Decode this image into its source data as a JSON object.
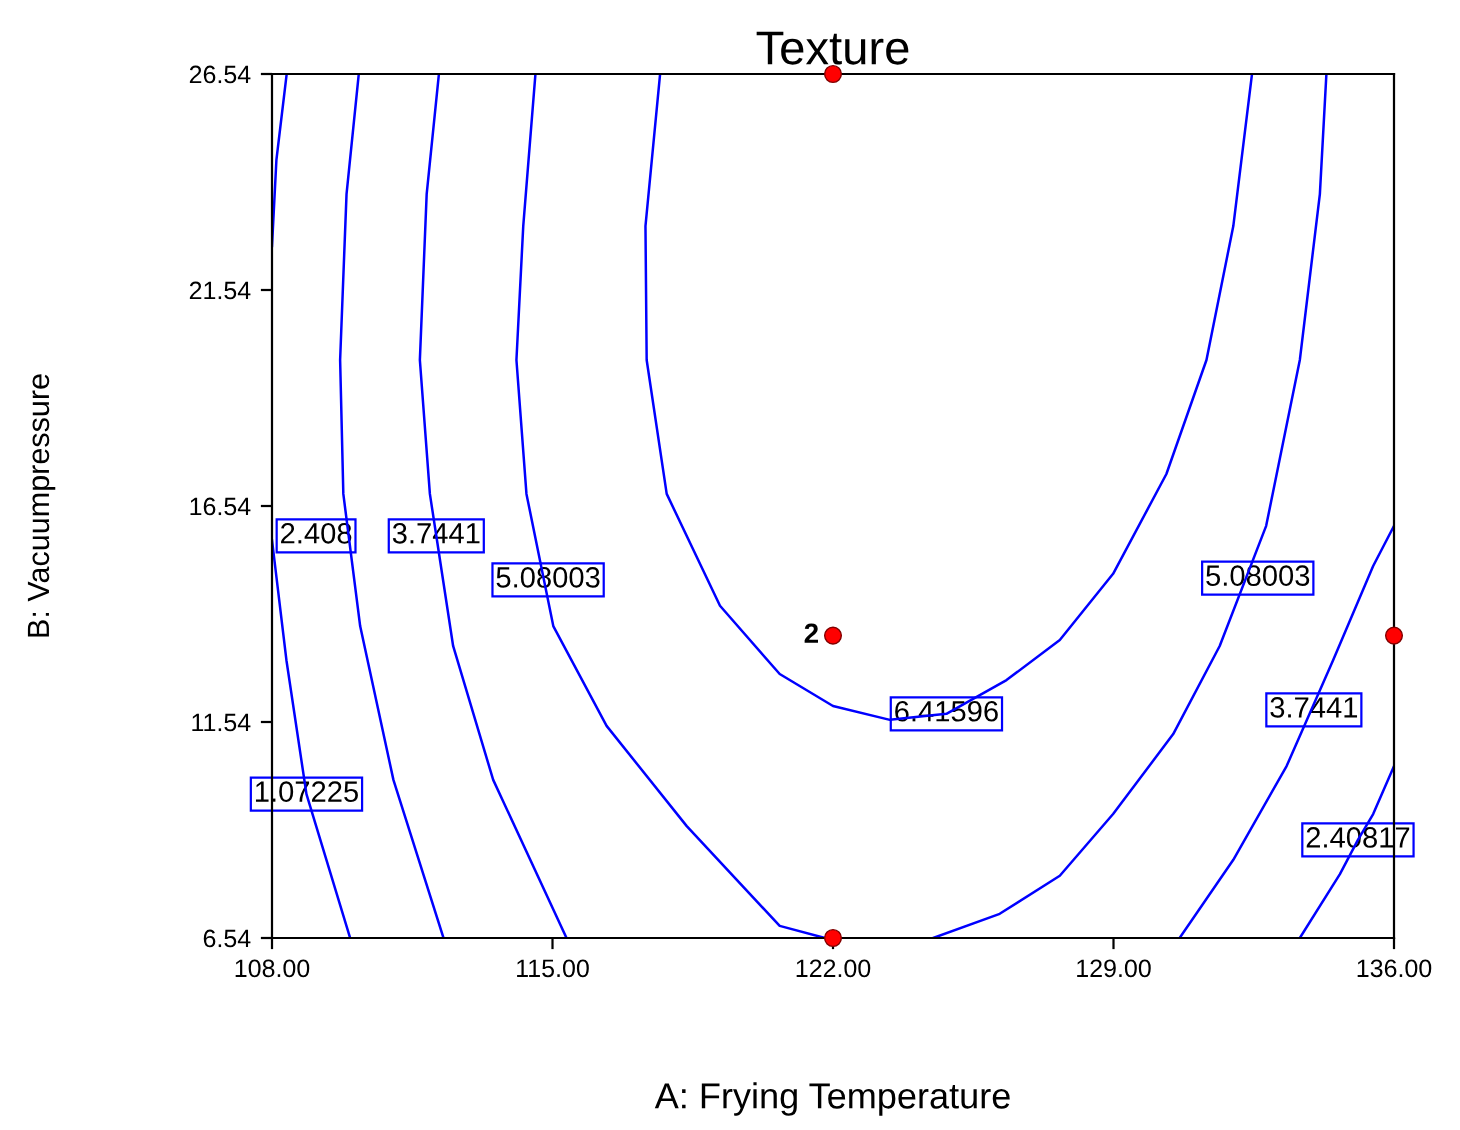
{
  "chart_data": {
    "type": "line",
    "title": "Texture",
    "xlabel": "A: Frying Temperature",
    "ylabel": "B: Vacuumpressure",
    "xlim": [
      108,
      136
    ],
    "ylim": [
      6.54,
      26.54
    ],
    "xticks": [
      {
        "value": 108,
        "label": "108.00"
      },
      {
        "value": 115,
        "label": "115.00"
      },
      {
        "value": 122,
        "label": "122.00"
      },
      {
        "value": 129,
        "label": "129.00"
      },
      {
        "value": 136,
        "label": "136.00"
      }
    ],
    "yticks": [
      6.54,
      11.54,
      16.54,
      21.54,
      26.54
    ],
    "grid": false,
    "line_style": "solid",
    "series": [
      {
        "color": "#0000ff",
        "x": [
          108.36,
          108.11,
          108.0,
          null,
          108.0,
          108.36,
          108.86,
          109.95
        ],
        "values": [
          26.49,
          24.55,
          22.56,
          null,
          15.75,
          12.97,
          9.87,
          6.54
        ]
      },
      {
        "color": "#0000ff",
        "x": [
          110.16,
          109.86,
          109.7,
          109.78,
          110.2,
          111.03,
          112.28,
          null,
          133.65,
          134.65,
          135.1,
          135.48,
          136.0
        ],
        "values": [
          26.49,
          23.76,
          19.92,
          16.82,
          13.76,
          10.2,
          6.54,
          null,
          6.54,
          8.02,
          8.81,
          9.41,
          10.52
        ]
      },
      {
        "color": "#0000ff",
        "x": [
          112.16,
          111.86,
          111.69,
          111.94,
          112.1,
          112.52,
          113.52,
          115.35,
          null,
          130.65,
          131.99,
          133.32,
          134.48,
          135.48,
          136.0
        ],
        "values": [
          26.49,
          23.76,
          19.92,
          16.82,
          15.85,
          13.3,
          10.2,
          6.54,
          null,
          6.54,
          8.35,
          10.52,
          12.97,
          15.15,
          16.08
        ]
      },
      {
        "color": "#0000ff",
        "x": [
          114.57,
          114.27,
          114.1,
          114.35,
          115.02,
          116.35,
          118.35,
          120.67,
          121.8,
          null,
          124.5,
          126.16,
          127.66,
          128.99,
          130.49,
          131.65,
          132.81,
          133.65,
          134.15,
          134.31
        ],
        "values": [
          26.49,
          23.02,
          19.92,
          16.82,
          13.76,
          11.45,
          9.13,
          6.82,
          6.54,
          null,
          6.54,
          7.1,
          7.98,
          9.41,
          11.26,
          13.3,
          16.08,
          19.92,
          23.76,
          26.49
        ]
      },
      {
        "color": "#0000ff",
        "x": [
          117.68,
          117.32,
          117.35,
          117.85,
          119.18,
          120.67,
          122.0,
          123.42,
          124.83,
          126.33,
          127.66,
          128.99,
          130.32,
          131.32,
          131.99,
          132.45
        ],
        "values": [
          26.49,
          23.02,
          19.92,
          16.82,
          14.23,
          12.65,
          11.91,
          11.59,
          11.73,
          12.51,
          13.44,
          14.97,
          17.28,
          19.92,
          23.02,
          26.49
        ]
      },
      {
        "type": "scatter",
        "color": "#ff0000",
        "marker": "circle",
        "x": [
          122,
          122,
          122,
          136
        ],
        "values": [
          26.54,
          13.54,
          6.54,
          13.54
        ]
      }
    ],
    "annotations": [
      {
        "text": "2.408",
        "x": 109.1,
        "y": 15.85
      },
      {
        "text": "3.7441",
        "x": 112.1,
        "y": 15.85
      },
      {
        "text": "5.08003",
        "x": 114.89,
        "y": 14.83
      },
      {
        "text": "1.07225",
        "x": 108.86,
        "y": 9.87
      },
      {
        "text": "6.41596",
        "x": 124.83,
        "y": 11.73
      },
      {
        "text": "5.08003",
        "x": 132.6,
        "y": 14.87
      },
      {
        "text": "3.7441",
        "x": 134.0,
        "y": 11.82
      },
      {
        "text": "2.40817",
        "x": 135.1,
        "y": 8.81
      },
      {
        "text": "2",
        "x": 122,
        "y": 13.54
      }
    ]
  }
}
